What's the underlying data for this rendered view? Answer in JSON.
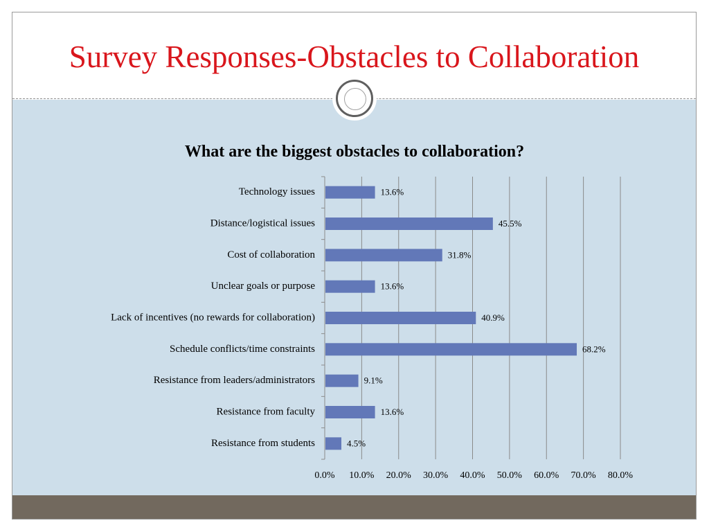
{
  "slide": {
    "title": "Survey Responses-Obstacles to Collaboration"
  },
  "colors": {
    "title": "#d9161c",
    "content_background": "#cddeea",
    "bottom_bar": "#72695e",
    "bar_fill": "#6278b8",
    "gridline": "#8a8a8a"
  },
  "chart_data": {
    "type": "bar",
    "orientation": "horizontal",
    "title": "What are the biggest obstacles to collaboration?",
    "categories": [
      "Technology issues",
      "Distance/logistical issues",
      "Cost of collaboration",
      "Unclear goals or purpose",
      "Lack of incentives (no rewards for collaboration)",
      "Schedule conflicts/time constraints",
      "Resistance from leaders/administrators",
      "Resistance from faculty",
      "Resistance from students"
    ],
    "values": [
      13.6,
      45.5,
      31.8,
      13.6,
      40.9,
      68.2,
      9.1,
      13.6,
      4.5
    ],
    "data_labels": [
      "13.6%",
      "45.5%",
      "31.8%",
      "13.6%",
      "40.9%",
      "68.2%",
      "9.1%",
      "13.6%",
      "4.5%"
    ],
    "xlim": [
      0,
      80
    ],
    "x_ticks": [
      "0.0%",
      "10.0%",
      "20.0%",
      "30.0%",
      "40.0%",
      "50.0%",
      "60.0%",
      "70.0%",
      "80.0%"
    ],
    "xlabel": "",
    "ylabel": "",
    "grid": "vertical",
    "legend": "none"
  }
}
